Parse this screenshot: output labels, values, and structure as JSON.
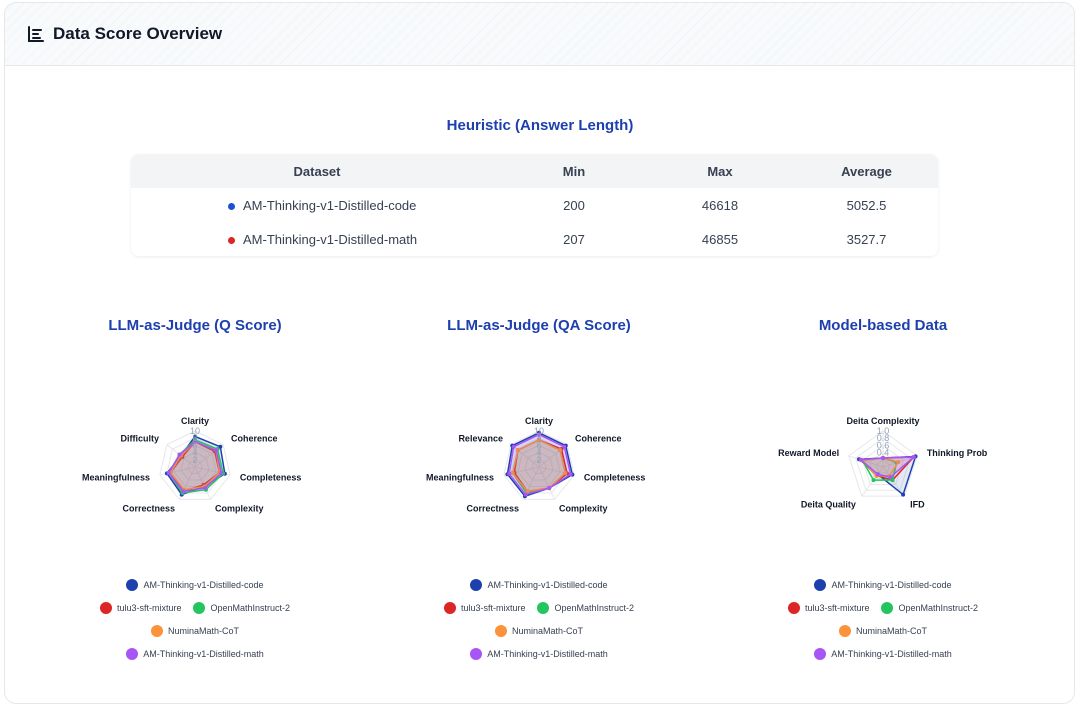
{
  "header": {
    "title": "Data Score Overview",
    "icon": "bar-chart-icon"
  },
  "heuristic": {
    "title": "Heuristic (Answer Length)",
    "columns": [
      "Dataset",
      "Min",
      "Max",
      "Average"
    ],
    "rows": [
      {
        "dataset": "AM-Thinking-v1-Distilled-code",
        "color": "#1d4ed8",
        "min": "200",
        "max": "46618",
        "avg": "5052.5"
      },
      {
        "dataset": "AM-Thinking-v1-Distilled-math",
        "color": "#dc2626",
        "min": "207",
        "max": "46855",
        "avg": "3527.7"
      }
    ]
  },
  "legend": [
    {
      "name": "AM-Thinking-v1-Distilled-code",
      "color": "#1e40af"
    },
    {
      "name": "tulu3-sft-mixture",
      "color": "#dc2626"
    },
    {
      "name": "OpenMathInstruct-2",
      "color": "#22c55e"
    },
    {
      "name": "NuminaMath-CoT",
      "color": "#fb923c"
    },
    {
      "name": "AM-Thinking-v1-Distilled-math",
      "color": "#a855f7"
    }
  ],
  "chart_data": [
    {
      "type": "radar",
      "title": "LLM-as-Judge (Q Score)",
      "axes": [
        "Clarity",
        "Coherence",
        "Completeness",
        "Complexity",
        "Correctness",
        "Meaningfulness",
        "Difficulty"
      ],
      "ticks": [
        "10",
        "8",
        "6",
        "4",
        "2"
      ],
      "range": [
        0,
        10
      ],
      "series": [
        {
          "name": "AM-Thinking-v1-Distilled-code",
          "color": "#1e40af",
          "values": [
            8.5,
            9,
            8.5,
            6,
            8.5,
            8,
            5
          ]
        },
        {
          "name": "tulu3-sft-mixture",
          "color": "#dc2626",
          "values": [
            7,
            7,
            7,
            5.5,
            7.5,
            7,
            4.5
          ]
        },
        {
          "name": "OpenMathInstruct-2",
          "color": "#22c55e",
          "values": [
            7.5,
            8,
            8,
            7,
            8,
            7.5,
            5.5
          ]
        },
        {
          "name": "NuminaMath-CoT",
          "color": "#fb923c",
          "values": [
            7,
            7.5,
            7,
            6,
            7,
            7,
            5
          ]
        },
        {
          "name": "AM-Thinking-v1-Distilled-math",
          "color": "#a855f7",
          "values": [
            7,
            7.5,
            7.5,
            6.5,
            7.5,
            7.5,
            5.5
          ]
        }
      ]
    },
    {
      "type": "radar",
      "title": "LLM-as-Judge (QA Score)",
      "axes": [
        "Clarity",
        "Coherence",
        "Completeness",
        "Complexity",
        "Correctness",
        "Meaningfulness",
        "Relevance"
      ],
      "ticks": [
        "10",
        "8",
        "6",
        "4",
        "2"
      ],
      "range": [
        0,
        10
      ],
      "series": [
        {
          "name": "AM-Thinking-v1-Distilled-code",
          "color": "#1e40af",
          "values": [
            9.5,
            9.5,
            9.5,
            6.5,
            9,
            9,
            9.5
          ]
        },
        {
          "name": "tulu3-sft-mixture",
          "color": "#dc2626",
          "values": [
            7.5,
            8,
            8,
            6.5,
            7.5,
            7,
            7.5
          ]
        },
        {
          "name": "OpenMathInstruct-2",
          "color": "#22c55e",
          "values": [
            7.5,
            7.5,
            7.5,
            6.5,
            8,
            7.5,
            7.5
          ]
        },
        {
          "name": "NuminaMath-CoT",
          "color": "#fb923c",
          "values": [
            7.5,
            7.5,
            7.5,
            6.5,
            7.5,
            7.5,
            7.5
          ]
        },
        {
          "name": "AM-Thinking-v1-Distilled-math",
          "color": "#a855f7",
          "values": [
            9,
            9,
            9,
            6.5,
            8.5,
            8.5,
            9
          ]
        }
      ]
    },
    {
      "type": "radar",
      "title": "Model-based Data",
      "axes": [
        "Deita Complexity",
        "Thinking Prob",
        "IFD",
        "Deita Quality",
        "Reward Model"
      ],
      "ticks": [
        "1.0",
        "0.8",
        "0.6",
        "0.4"
      ],
      "range": [
        0,
        1
      ],
      "series": [
        {
          "name": "AM-Thinking-v1-Distilled-code",
          "color": "#1e40af",
          "values": [
            0.25,
            0.95,
            0.95,
            0.25,
            0.7
          ]
        },
        {
          "name": "tulu3-sft-mixture",
          "color": "#dc2626",
          "values": [
            0.25,
            0.9,
            0.45,
            0.3,
            0.65
          ]
        },
        {
          "name": "OpenMathInstruct-2",
          "color": "#22c55e",
          "values": [
            0.25,
            0.4,
            0.45,
            0.45,
            0.6
          ]
        },
        {
          "name": "NuminaMath-CoT",
          "color": "#fb923c",
          "values": [
            0.25,
            0.45,
            0.3,
            0.3,
            0.6
          ]
        },
        {
          "name": "AM-Thinking-v1-Distilled-math",
          "color": "#a855f7",
          "values": [
            0.25,
            0.9,
            0.35,
            0.25,
            0.65
          ]
        }
      ]
    }
  ]
}
